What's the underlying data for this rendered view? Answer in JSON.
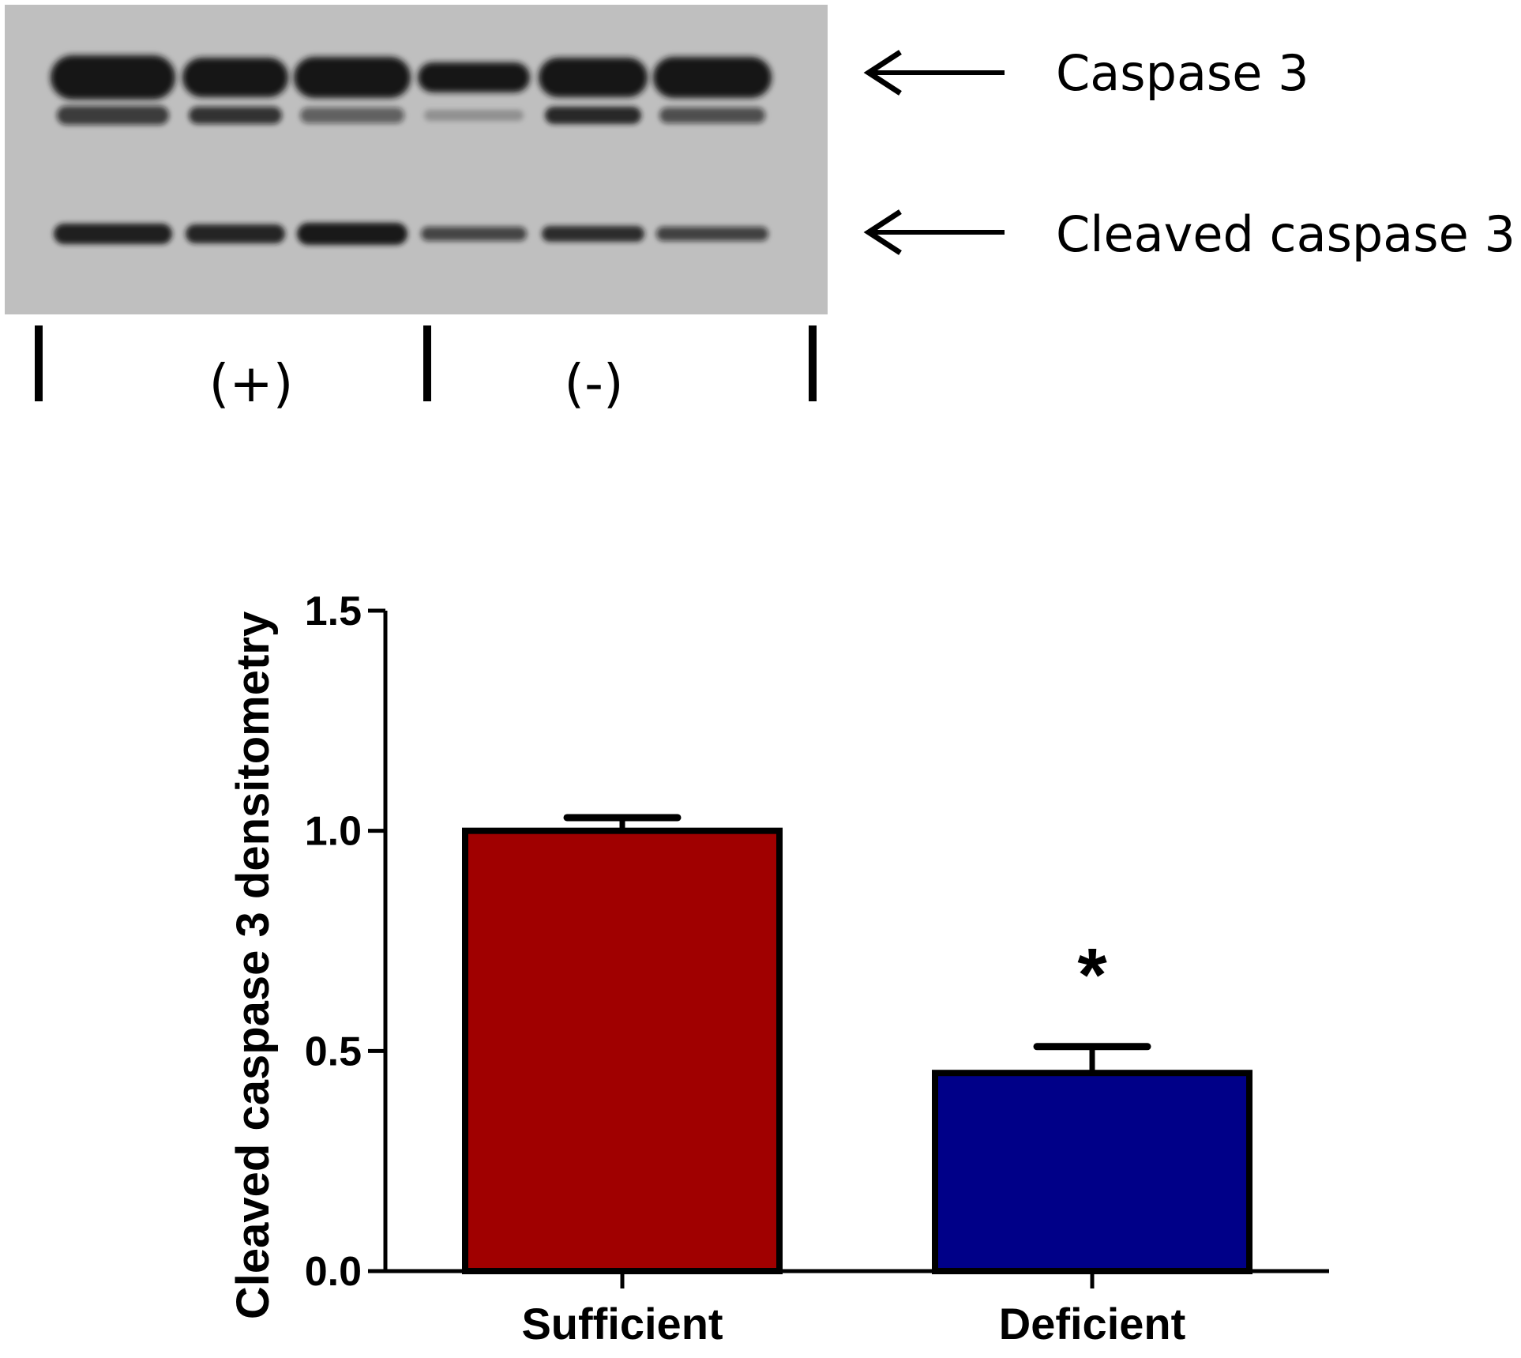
{
  "blot": {
    "band_labels": [
      "Caspase 3",
      "Cleaved caspase 3"
    ],
    "group_labels": [
      "(+)",
      "(-)"
    ],
    "colors": {
      "membrane": "#bfbfbf",
      "band": "#141414"
    }
  },
  "chart_data": {
    "type": "bar",
    "categories": [
      "Sufficient",
      "Deficient"
    ],
    "values": [
      1.0,
      0.45
    ],
    "error": [
      0.03,
      0.06
    ],
    "colors": [
      "#a00000",
      "#000088"
    ],
    "ylabel": "Cleaved caspase 3 densitometry",
    "xlabel": "",
    "ylim": [
      0,
      1.5
    ],
    "yticks": [
      "0.0",
      "0.5",
      "1.0",
      "1.5"
    ],
    "annotations": [
      {
        "text": "*",
        "category": "Deficient"
      }
    ],
    "grid": false
  }
}
